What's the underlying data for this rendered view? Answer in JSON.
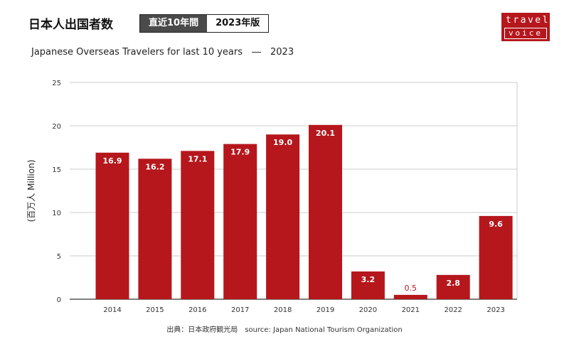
{
  "header": {
    "title": "日本人出国者数",
    "badge_period": "直近10年間",
    "badge_edition": "2023年版"
  },
  "logo": {
    "line1": "travel",
    "line2": "voice"
  },
  "source_text": "出典：日本政府観光局　source: Japan National Tourism Organization",
  "colors": {
    "bar": "#b5171c",
    "grid": "#cccccc",
    "logo_bg": "#b5171c"
  },
  "chart_data": {
    "type": "bar",
    "title": "Japanese Overseas Travelers for last 10 years　―　2023",
    "xlabel": "",
    "ylabel": "(百万人 Million)",
    "categories": [
      "2014",
      "2015",
      "2016",
      "2017",
      "2018",
      "2019",
      "2020",
      "2021",
      "2022",
      "2023"
    ],
    "values": [
      16.9,
      16.2,
      17.1,
      17.9,
      19.0,
      20.1,
      3.2,
      0.5,
      2.8,
      9.6
    ],
    "value_labels": [
      "16.9",
      "16.2",
      "17.1",
      "17.9",
      "19.0",
      "20.1",
      "3.2",
      "0.5",
      "2.8",
      "9.6"
    ],
    "ylim": [
      0,
      25
    ],
    "yticks": [
      0,
      5,
      10,
      15,
      20,
      25
    ],
    "grid": true,
    "legend": "none"
  }
}
